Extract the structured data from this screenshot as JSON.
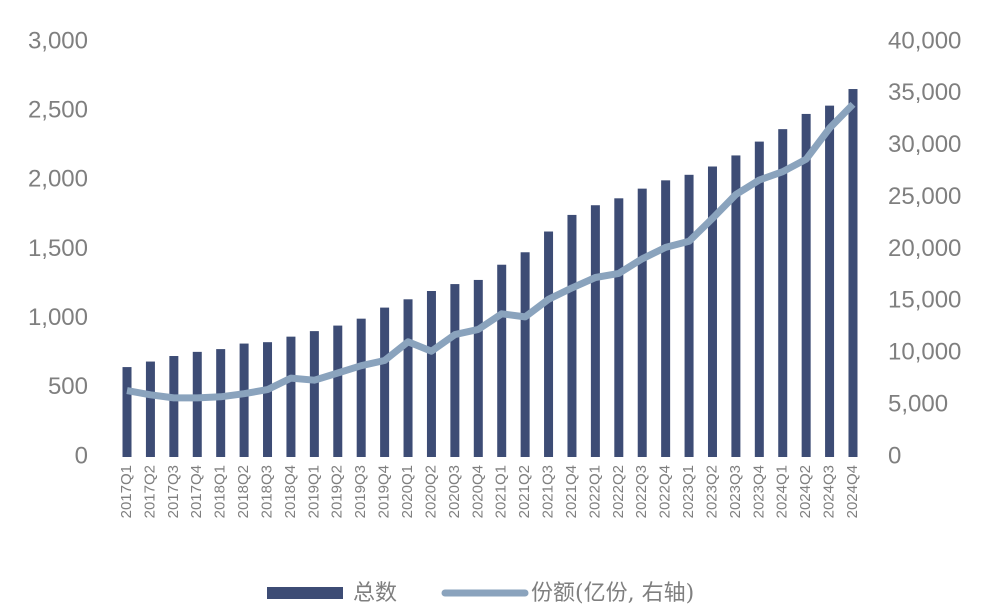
{
  "chart_data": {
    "type": "bar",
    "categories": [
      "2017Q1",
      "2017Q2",
      "2017Q3",
      "2017Q4",
      "2018Q1",
      "2018Q2",
      "2018Q3",
      "2018Q4",
      "2019Q1",
      "2019Q2",
      "2019Q3",
      "2019Q4",
      "2020Q1",
      "2020Q2",
      "2020Q3",
      "2020Q4",
      "2021Q1",
      "2021Q2",
      "2021Q3",
      "2021Q4",
      "2022Q1",
      "2022Q2",
      "2022Q3",
      "2022Q4",
      "2023Q1",
      "2023Q2",
      "2023Q3",
      "2023Q4",
      "2024Q1",
      "2024Q2",
      "2024Q3",
      "2024Q4"
    ],
    "series": [
      {
        "name": "总数",
        "type": "bar",
        "color": "#3d4c75",
        "values": [
          650,
          690,
          730,
          760,
          780,
          820,
          830,
          870,
          910,
          950,
          1000,
          1080,
          1140,
          1200,
          1250,
          1280,
          1390,
          1480,
          1630,
          1750,
          1820,
          1870,
          1940,
          2000,
          2040,
          2100,
          2180,
          2280,
          2370,
          2480,
          2540,
          2660
        ]
      },
      {
        "name": "份额(亿份, 右轴)",
        "type": "line",
        "axis": "y2",
        "color": "#8aa3bd",
        "values": [
          6400,
          6000,
          5700,
          5700,
          5800,
          6100,
          6500,
          7600,
          7400,
          8100,
          8800,
          9300,
          11100,
          10200,
          11800,
          12300,
          13800,
          13500,
          15200,
          16300,
          17300,
          17700,
          19100,
          20200,
          20800,
          23000,
          25300,
          26700,
          27500,
          28700,
          31700,
          34000
        ]
      }
    ],
    "ylim": [
      0,
      3000
    ],
    "yticks": [
      0,
      500,
      {
        "value": 1000,
        "label": "1,000"
      },
      {
        "value": 1500,
        "label": "1,500"
      },
      {
        "value": 2000,
        "label": "2,000"
      },
      {
        "value": 2500,
        "label": "2,500"
      },
      {
        "value": 3000,
        "label": "3,000"
      }
    ],
    "y2lim": [
      0,
      40000
    ],
    "y2ticks": [
      0,
      {
        "value": 5000,
        "label": "5,000"
      },
      {
        "value": 10000,
        "label": "10,000"
      },
      {
        "value": 15000,
        "label": "15,000"
      },
      {
        "value": 20000,
        "label": "20,000"
      },
      {
        "value": 25000,
        "label": "25,000"
      },
      {
        "value": 30000,
        "label": "30,000"
      },
      {
        "value": 35000,
        "label": "35,000"
      },
      {
        "value": 40000,
        "label": "40,000"
      }
    ],
    "grid": false,
    "legend": "bottom"
  }
}
